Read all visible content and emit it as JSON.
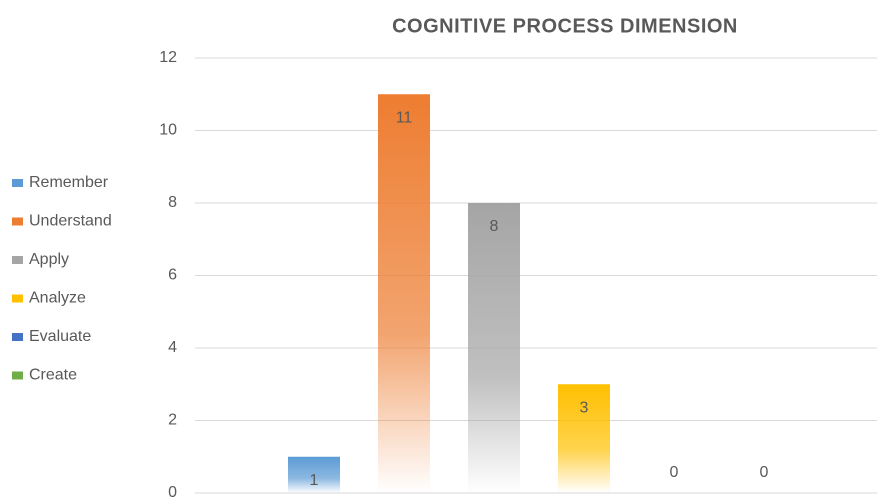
{
  "chart_data": {
    "type": "bar",
    "title": "COGNITIVE PROCESS DIMENSION",
    "series": [
      {
        "name": "Remember",
        "color": "#5b9bd5",
        "values": [
          1
        ]
      },
      {
        "name": "Understand",
        "color": "#ed7d31",
        "values": [
          11
        ]
      },
      {
        "name": "Apply",
        "color": "#a5a5a5",
        "values": [
          8
        ]
      },
      {
        "name": "Analyze",
        "color": "#ffc000",
        "values": [
          3
        ]
      },
      {
        "name": "Evaluate",
        "color": "#4472c4",
        "values": [
          0
        ]
      },
      {
        "name": "Create",
        "color": "#70ad47",
        "values": [
          0
        ]
      }
    ],
    "ylim": [
      0,
      12
    ],
    "yticks": [
      0,
      2,
      4,
      6,
      8,
      10,
      12
    ],
    "grid": true,
    "legend": "left"
  }
}
